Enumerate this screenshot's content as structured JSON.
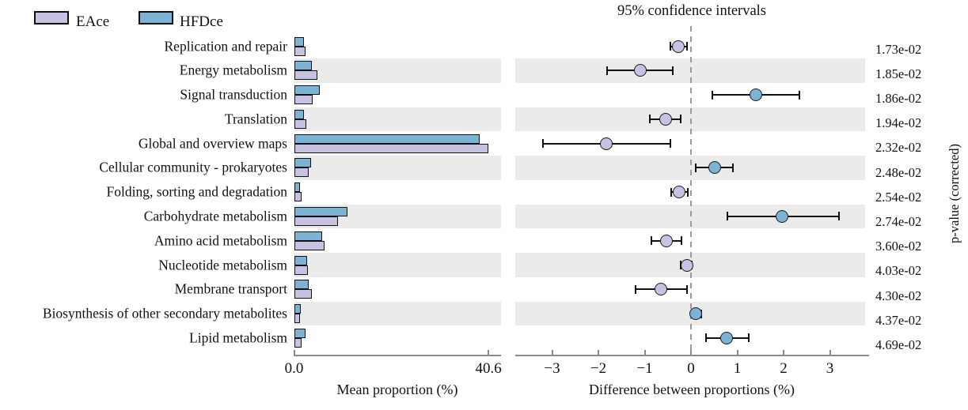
{
  "title": "95% confidence intervals",
  "legend": {
    "items": [
      {
        "label": "EAce",
        "color": "#c7c1e2"
      },
      {
        "label": "HFDce",
        "color": "#7cb3d5"
      }
    ]
  },
  "left_panel": {
    "xlabel": "Mean proportion (%)",
    "ticks": [
      {
        "label": "0.0",
        "value": 0
      },
      {
        "label": "40.6",
        "value": 40.6
      }
    ]
  },
  "right_panel": {
    "xlabel": "Difference between proportions (%)",
    "ticks": [
      {
        "label": "−3",
        "value": -3
      },
      {
        "label": "−2",
        "value": -2
      },
      {
        "label": "−1",
        "value": -1
      },
      {
        "label": "0",
        "value": 0
      },
      {
        "label": "1",
        "value": 1
      },
      {
        "label": "2",
        "value": 2
      },
      {
        "label": "3",
        "value": 3
      }
    ]
  },
  "pvalue_axis_label": "p-value (corrected)",
  "colors": {
    "eace": "#c7c1e2",
    "hfdce": "#7cb3d5",
    "band": "#ebebeb",
    "axis": "#8a8a8a",
    "zero_line": "#9a9a9a",
    "errorbar": "#111111"
  },
  "chart_data": {
    "type": "bar",
    "subtype": "STAMP extended error bar (grouped bars + difference CI dot plot)",
    "title": "95% confidence intervals",
    "xlabel_left": "Mean proportion (%)",
    "xlabel_right": "Difference between proportions (%)",
    "left_axis_range": [
      0,
      40.6
    ],
    "right_axis_range": [
      -3.8,
      3.85
    ],
    "row_shading": "alternate gray bands on even rows",
    "legend_position": "top-left",
    "categories": [
      "Replication and repair",
      "Energy metabolism",
      "Signal transduction",
      "Translation",
      "Global and overview maps",
      "Cellular community - prokaryotes",
      "Folding, sorting and degradation",
      "Carbohydrate metabolism",
      "Amino acid metabolism",
      "Nucleotide metabolism",
      "Membrane transport",
      "Biosynthesis of other secondary metabolites",
      "Lipid metabolism"
    ],
    "series": [
      {
        "name": "EAce",
        "color": "#c7c1e2",
        "values": [
          2.4,
          4.9,
          3.9,
          2.5,
          40.6,
          3.0,
          1.5,
          9.1,
          6.3,
          2.9,
          3.7,
          1.3,
          1.6
        ]
      },
      {
        "name": "HFDce",
        "color": "#7cb3d5",
        "values": [
          2.1,
          3.8,
          5.3,
          2.0,
          38.8,
          3.5,
          1.2,
          11.1,
          5.8,
          2.8,
          3.0,
          1.4,
          2.4
        ]
      }
    ],
    "difference": [
      {
        "category": "Replication and repair",
        "diff": -0.28,
        "ci_low": -0.45,
        "ci_high": -0.09,
        "enriched": "EAce",
        "p_value": "1.73e-02"
      },
      {
        "category": "Energy metabolism",
        "diff": -1.1,
        "ci_low": -1.82,
        "ci_high": -0.39,
        "enriched": "EAce",
        "p_value": "1.85e-02"
      },
      {
        "category": "Signal transduction",
        "diff": 1.4,
        "ci_low": 0.47,
        "ci_high": 2.35,
        "enriched": "HFDce",
        "p_value": "1.86e-02"
      },
      {
        "category": "Translation",
        "diff": -0.55,
        "ci_low": -0.89,
        "ci_high": -0.22,
        "enriched": "EAce",
        "p_value": "1.94e-02"
      },
      {
        "category": "Global and overview maps",
        "diff": -1.83,
        "ci_low": -3.2,
        "ci_high": -0.45,
        "enriched": "EAce",
        "p_value": "2.32e-02"
      },
      {
        "category": "Cellular community - prokaryotes",
        "diff": 0.52,
        "ci_low": 0.11,
        "ci_high": 0.9,
        "enriched": "HFDce",
        "p_value": "2.48e-02"
      },
      {
        "category": "Folding, sorting and degradation",
        "diff": -0.26,
        "ci_low": -0.43,
        "ci_high": -0.06,
        "enriched": "EAce",
        "p_value": "2.54e-02"
      },
      {
        "category": "Carbohydrate metabolism",
        "diff": 1.97,
        "ci_low": 0.79,
        "ci_high": 3.19,
        "enriched": "HFDce",
        "p_value": "2.74e-02"
      },
      {
        "category": "Amino acid metabolism",
        "diff": -0.53,
        "ci_low": -0.86,
        "ci_high": -0.21,
        "enriched": "EAce",
        "p_value": "3.60e-02"
      },
      {
        "category": "Nucleotide metabolism",
        "diff": -0.09,
        "ci_low": -0.22,
        "ci_high": 0.02,
        "enriched": "EAce",
        "p_value": "4.03e-02"
      },
      {
        "category": "Membrane transport",
        "diff": -0.65,
        "ci_low": -1.19,
        "ci_high": -0.08,
        "enriched": "EAce",
        "p_value": "4.30e-02"
      },
      {
        "category": "Biosynthesis of other secondary metabolites",
        "diff": 0.11,
        "ci_low": 0.02,
        "ci_high": 0.22,
        "enriched": "HFDce",
        "p_value": "4.37e-02"
      },
      {
        "category": "Lipid metabolism",
        "diff": 0.77,
        "ci_low": 0.32,
        "ci_high": 1.25,
        "enriched": "HFDce",
        "p_value": "4.69e-02"
      }
    ]
  }
}
